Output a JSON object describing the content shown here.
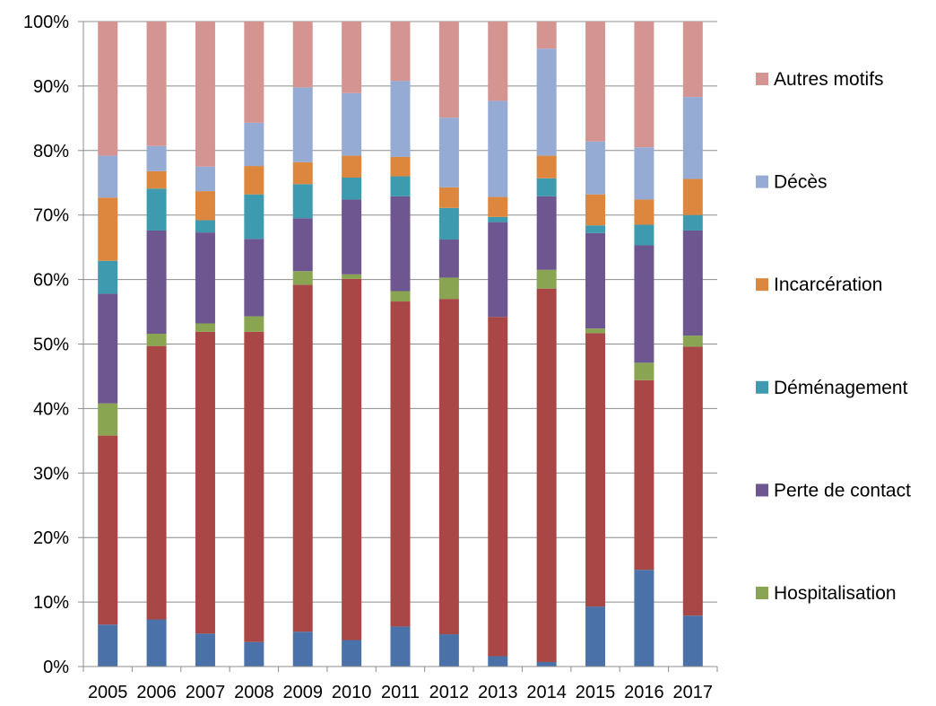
{
  "chart_data": {
    "type": "bar",
    "stacked": "percent",
    "categories": [
      "2005",
      "2006",
      "2007",
      "2008",
      "2009",
      "2010",
      "2011",
      "2012",
      "2013",
      "2014",
      "2015",
      "2016",
      "2017"
    ],
    "ylim": [
      0,
      100
    ],
    "y_ticks": [
      "0%",
      "10%",
      "20%",
      "30%",
      "40%",
      "50%",
      "60%",
      "70%",
      "80%",
      "90%",
      "100%"
    ],
    "grid": true,
    "legend_position": "right",
    "series": [
      {
        "color": "#4A72A8",
        "values": [
          6.5,
          7.3,
          5.1,
          3.8,
          5.4,
          4.1,
          6.2,
          5.0,
          1.6,
          0.7,
          9.3,
          15.0,
          7.9
        ]
      },
      {
        "color": "#A84746",
        "values": [
          29.3,
          42.4,
          46.8,
          48.1,
          53.8,
          56.0,
          50.4,
          52.0,
          52.6,
          57.9,
          42.4,
          29.4,
          41.7
        ]
      },
      {
        "name": "Hospitalisation",
        "color": "#8AA552",
        "values": [
          5.0,
          1.9,
          1.3,
          2.4,
          2.1,
          0.7,
          1.6,
          3.3,
          0.0,
          2.9,
          0.7,
          2.7,
          1.7
        ]
      },
      {
        "name": "Perte de contact",
        "color": "#6E5691",
        "values": [
          17.0,
          16.0,
          14.1,
          12.0,
          8.2,
          11.6,
          14.7,
          5.9,
          14.7,
          11.4,
          14.8,
          18.2,
          16.3
        ]
      },
      {
        "name": "Déménagement",
        "color": "#3E9AAE",
        "values": [
          5.1,
          6.5,
          1.9,
          6.9,
          5.3,
          3.4,
          3.1,
          4.9,
          0.8,
          2.8,
          1.2,
          3.2,
          2.4
        ]
      },
      {
        "name": "Incarcération",
        "color": "#DC863E",
        "values": [
          9.8,
          2.7,
          4.5,
          4.4,
          3.4,
          3.4,
          3.0,
          3.2,
          3.1,
          3.5,
          4.8,
          3.9,
          5.6
        ]
      },
      {
        "name": "Décès",
        "color": "#95ABD4",
        "values": [
          6.5,
          3.9,
          3.8,
          6.7,
          11.6,
          9.7,
          11.8,
          10.8,
          14.9,
          16.6,
          8.2,
          8.1,
          12.7
        ]
      },
      {
        "name": "Autres motifs",
        "color": "#D49592",
        "values": [
          20.8,
          19.3,
          22.5,
          15.7,
          10.2,
          11.1,
          9.2,
          14.9,
          12.3,
          4.2,
          18.6,
          19.5,
          11.7
        ]
      }
    ]
  }
}
